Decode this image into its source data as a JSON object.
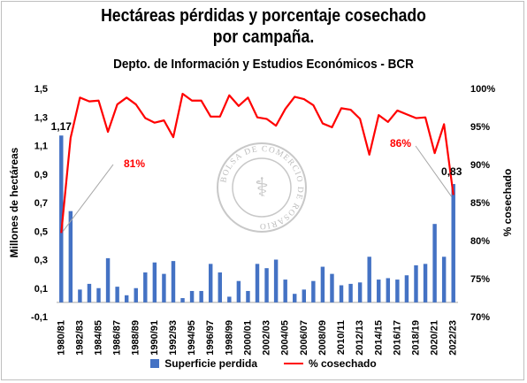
{
  "chart_data": {
    "type": "bar",
    "title": "Hectáreas pérdidas y  porcentaje cosechado por campaña.",
    "subtitle": "Depto. de Información y Estudios Económicos - BCR",
    "ylabel": "Millones de hectáreas",
    "y2label": "% cosechado",
    "ylim": [
      -0.1,
      1.5
    ],
    "y2lim": [
      70,
      100
    ],
    "y_ticks": [
      "-0,1",
      "0,1",
      "0,3",
      "0,5",
      "0,7",
      "0,9",
      "1,1",
      "1,3",
      "1,5"
    ],
    "y2_ticks": [
      "70%",
      "75%",
      "80%",
      "85%",
      "90%",
      "95%",
      "100%"
    ],
    "x_tick_labels": [
      "1980/81",
      "1982/83",
      "1984/85",
      "1986/87",
      "1988/89",
      "1990/91",
      "1992/93",
      "1994/95",
      "1996/97",
      "1998/99",
      "2000/01",
      "2002/03",
      "2004/05",
      "2006/07",
      "2008/09",
      "2010/11",
      "2012/13",
      "2014/15",
      "2016/17",
      "2018/19",
      "2020/21",
      "2022/23"
    ],
    "categories": [
      "1980/81",
      "1981/82",
      "1982/83",
      "1983/84",
      "1984/85",
      "1985/86",
      "1986/87",
      "1987/88",
      "1988/89",
      "1989/90",
      "1990/91",
      "1991/92",
      "1992/93",
      "1993/94",
      "1994/95",
      "1995/96",
      "1996/97",
      "1997/98",
      "1998/99",
      "1999/00",
      "2000/01",
      "2001/02",
      "2002/03",
      "2003/04",
      "2004/05",
      "2005/06",
      "2006/07",
      "2007/08",
      "2008/09",
      "2009/10",
      "2010/11",
      "2011/12",
      "2012/13",
      "2013/14",
      "2014/15",
      "2015/16",
      "2016/17",
      "2017/18",
      "2018/19",
      "2019/20",
      "2020/21",
      "2021/22",
      "2022/23"
    ],
    "series": [
      {
        "name": "Superficie perdida",
        "type": "bar",
        "axis": "left",
        "color": "#4472c4",
        "values": [
          1.17,
          0.64,
          0.09,
          0.13,
          0.1,
          0.31,
          0.11,
          0.05,
          0.1,
          0.21,
          0.28,
          0.2,
          0.29,
          0.03,
          0.08,
          0.08,
          0.27,
          0.21,
          0.04,
          0.15,
          0.08,
          0.27,
          0.24,
          0.3,
          0.16,
          0.06,
          0.09,
          0.15,
          0.25,
          0.2,
          0.12,
          0.13,
          0.14,
          0.32,
          0.16,
          0.17,
          0.16,
          0.19,
          0.26,
          0.27,
          0.55,
          0.32,
          0.83
        ]
      },
      {
        "name": "% cosechado",
        "type": "line",
        "axis": "right",
        "color": "#ff0000",
        "values": [
          81,
          93.5,
          98.8,
          98.3,
          98.4,
          94.3,
          97.9,
          98.8,
          97.9,
          96.1,
          95.5,
          95.8,
          93.6,
          99.3,
          98.4,
          98.4,
          96.3,
          96.3,
          99.1,
          97.7,
          98.8,
          96.2,
          96,
          95.1,
          97.3,
          98.9,
          98.6,
          97.8,
          95.4,
          94.9,
          97.4,
          97.2,
          96,
          91.3,
          96.5,
          95.6,
          97.1,
          96.6,
          96.1,
          96.2,
          91.5,
          95.3,
          86
        ]
      }
    ],
    "annotations": [
      {
        "text": "1,17",
        "series": "Superficie perdida",
        "category": "1980/81"
      },
      {
        "text": "0,83",
        "series": "Superficie perdida",
        "category": "2022/23"
      },
      {
        "text": "81%",
        "series": "% cosechado",
        "category": "1980/81",
        "color": "#ff0000"
      },
      {
        "text": "86%",
        "series": "% cosechado",
        "category": "2022/23",
        "color": "#ff0000"
      }
    ],
    "watermark_text": "BOLSA DE COMERCIO DE ROSARIO",
    "legend_position": "bottom",
    "grid": false
  }
}
